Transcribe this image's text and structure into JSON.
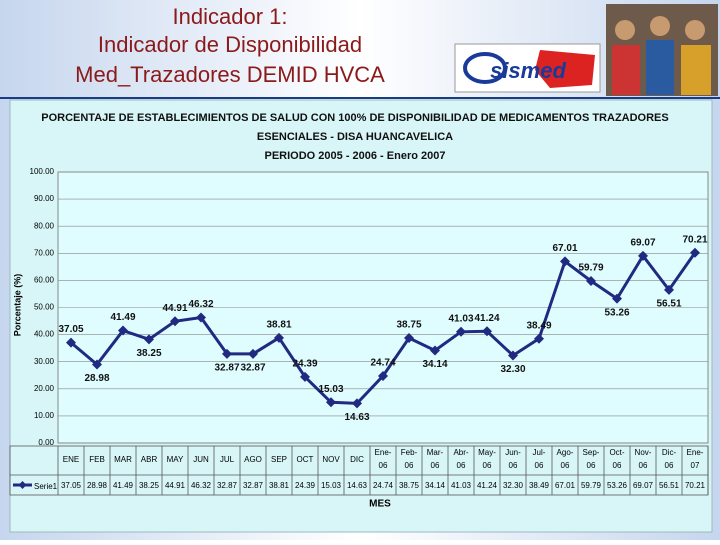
{
  "slide_title": [
    "Indicador 1:",
    "Indicador de Disponibilidad",
    "Med_Trazadores DEMID HVCA"
  ],
  "logo_text": "sismed",
  "chart_data": {
    "type": "line",
    "title": [
      "PORCENTAJE DE ESTABLECIMIENTOS DE SALUD CON 100% DE DISPONIBILIDAD DE MEDICAMENTOS TRAZADORES",
      "ESENCIALES - DISA HUANCAVELICA",
      "PERIODO  2005  -  2006 - Enero 2007"
    ],
    "y_label": "Porcentaje (%)",
    "x_label": "MES",
    "categories": [
      "ENE",
      "FEB",
      "MAR",
      "ABR",
      "MAY",
      "JUN",
      "JUL",
      "AGO",
      "SEP",
      "OCT",
      "NOV",
      "DIC",
      "Ene-06",
      "Feb-06",
      "Mar-06",
      "Abr-06",
      "May-06",
      "Jun-06",
      "Jul-06",
      "Ago-06",
      "Sep-06",
      "Oct-06",
      "Nov-06",
      "Dic-06",
      "Ene-07"
    ],
    "series": [
      {
        "name": "Serie1",
        "color": "#1f2a80",
        "values": [
          37.05,
          28.98,
          41.49,
          38.25,
          44.91,
          46.32,
          32.87,
          32.87,
          38.81,
          24.39,
          15.03,
          14.63,
          24.74,
          38.75,
          34.14,
          41.03,
          41.24,
          32.3,
          38.49,
          67.01,
          59.79,
          53.26,
          69.07,
          56.51,
          70.21
        ],
        "value_labels": [
          "37.05",
          "28.98",
          "41.49",
          "38.25",
          "44.91",
          "46.32",
          "32.87",
          "32.87",
          "38.81",
          "24.39",
          "15.03",
          "14.63",
          "24.74",
          "38.75",
          "34.14",
          "41.03",
          "41.24",
          "32.30",
          "38.49",
          "67.01",
          "59.79",
          "53.26",
          "69.07",
          "56.51",
          "70.21"
        ]
      }
    ],
    "ylim": [
      0,
      100
    ],
    "yticks": [
      {
        "value": 0,
        "label": "0.00"
      },
      {
        "value": 10,
        "label": "10.00"
      },
      {
        "value": 20,
        "label": "20.00"
      },
      {
        "value": 30,
        "label": "30.00"
      },
      {
        "value": 40,
        "label": "40.00"
      },
      {
        "value": 50,
        "label": "50.00"
      },
      {
        "value": 60,
        "label": "60.00"
      },
      {
        "value": 70,
        "label": "70.00"
      },
      {
        "value": 80,
        "label": "80.00"
      },
      {
        "value": 90,
        "label": "90.00"
      },
      {
        "value": 100,
        "label": "100.00"
      }
    ],
    "grid": true
  }
}
